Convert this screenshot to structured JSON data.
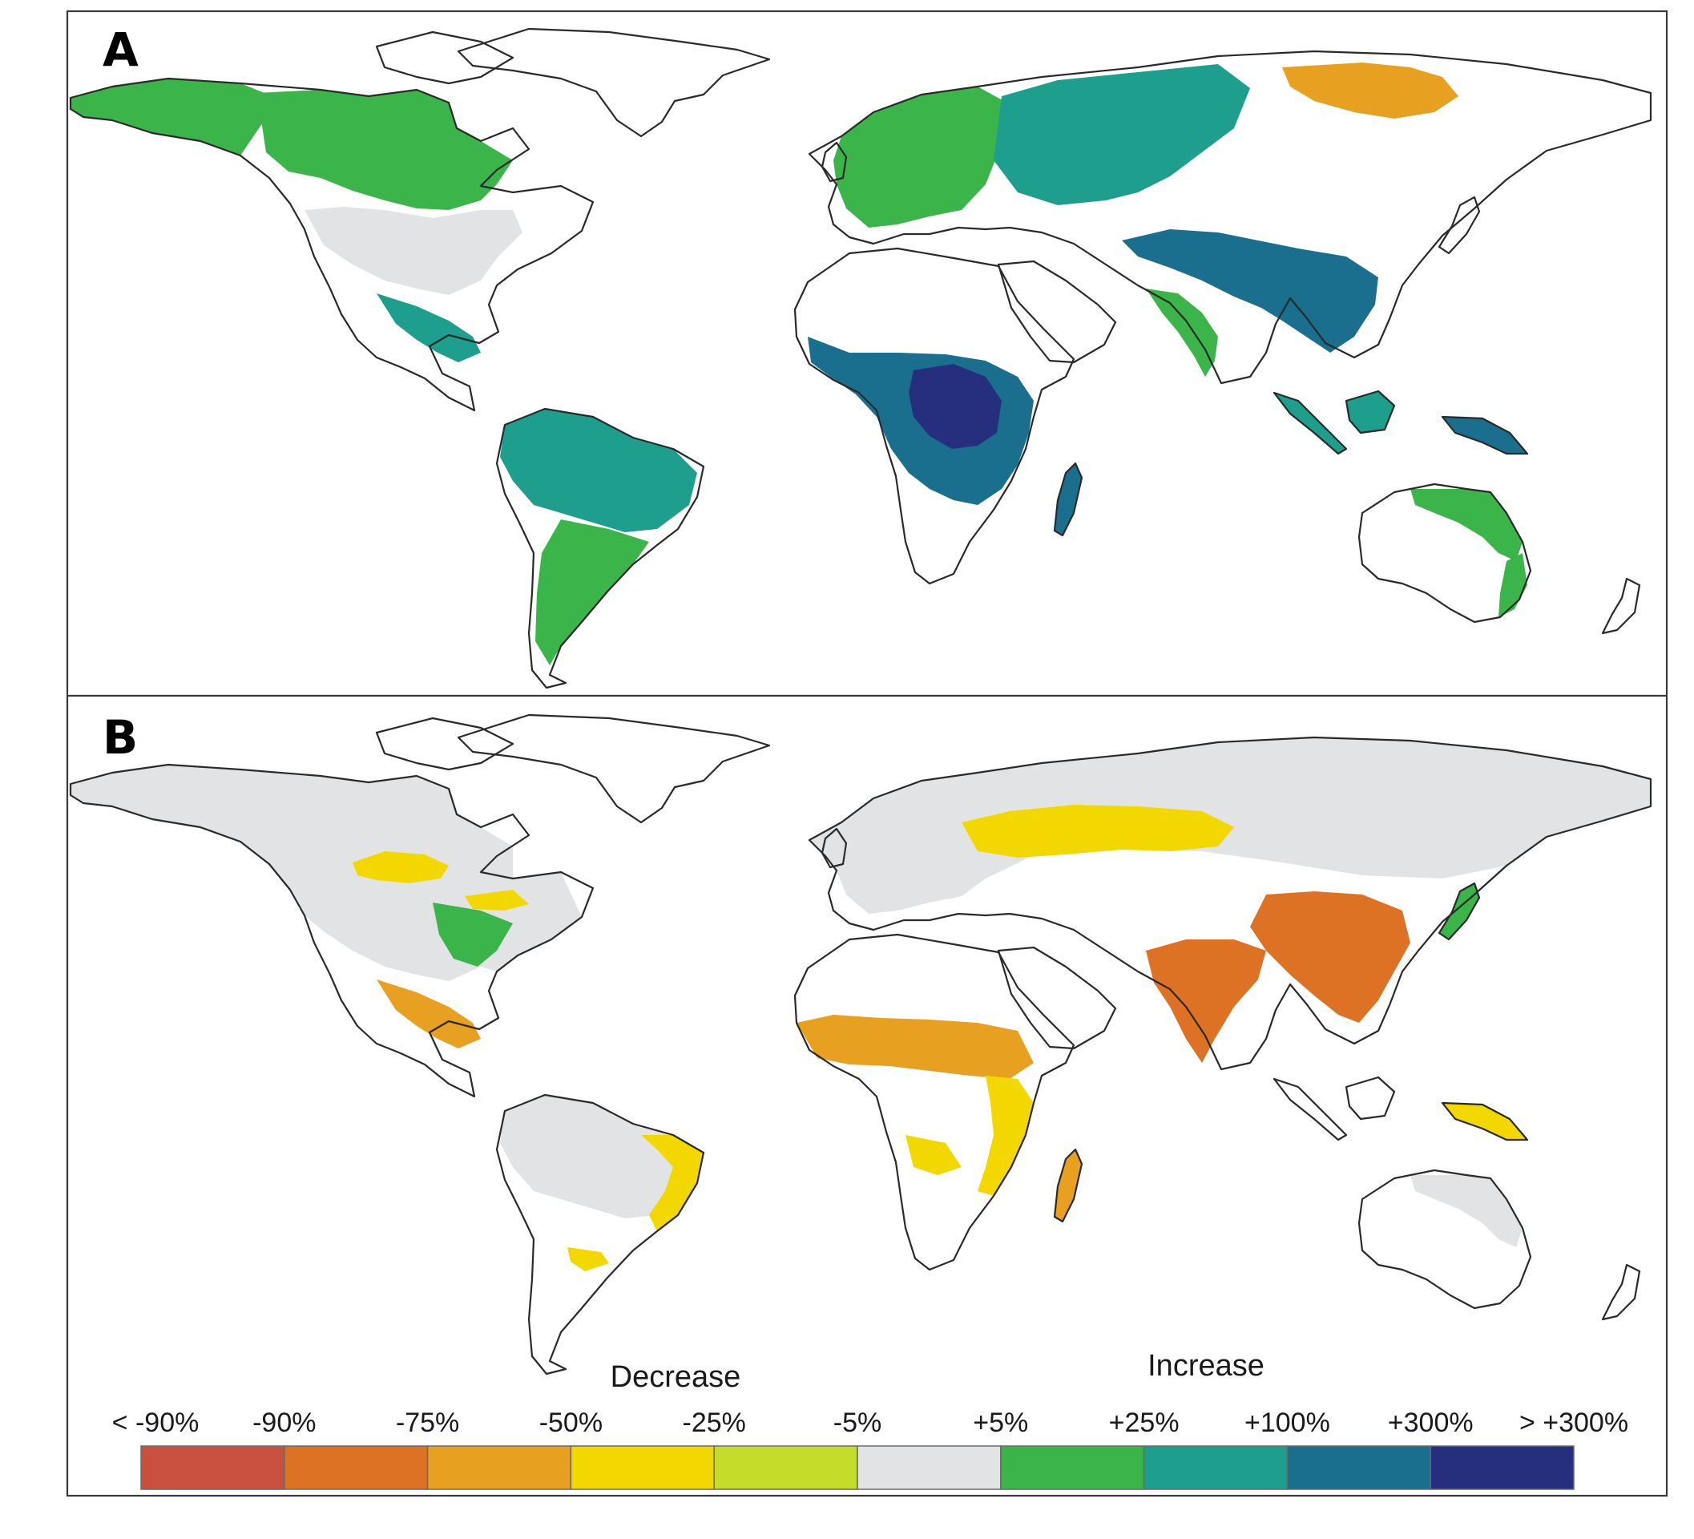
{
  "panels": [
    {
      "id": "A",
      "label": "A",
      "regions": [
        {
          "name": "north-america-west",
          "class": "+5% to +25%"
        },
        {
          "name": "north-america-boreal",
          "class": "+5% to +25%"
        },
        {
          "name": "north-america-interior",
          "class": "-5% to +5%"
        },
        {
          "name": "central-america",
          "class": "+25% to +100%"
        },
        {
          "name": "amazon",
          "class": "+25% to +100%"
        },
        {
          "name": "southern-south-america",
          "class": "+5% to +25%"
        },
        {
          "name": "europe",
          "class": "+5% to +25%"
        },
        {
          "name": "siberia",
          "class": "+25% to +100%"
        },
        {
          "name": "east-siberia-hotspot",
          "class": "-75% to -50%"
        },
        {
          "name": "central-africa",
          "class": "+100% to +300%"
        },
        {
          "name": "congo-core",
          "class": "> +300%"
        },
        {
          "name": "madagascar",
          "class": "+100% to +300%"
        },
        {
          "name": "tibet-south-asia",
          "class": "+100% to +300%"
        },
        {
          "name": "india",
          "class": "+5% to +25%"
        },
        {
          "name": "southeast-asia",
          "class": "+25% to +100%"
        },
        {
          "name": "new-guinea",
          "class": "+100% to +300%"
        },
        {
          "name": "australia-east",
          "class": "+5% to +25%"
        }
      ]
    },
    {
      "id": "B",
      "label": "B",
      "regions": [
        {
          "name": "north-america",
          "class": "-5% to +5%"
        },
        {
          "name": "canada-prairies",
          "class": "-50% to -25%"
        },
        {
          "name": "us-east",
          "class": "+5% to +25%"
        },
        {
          "name": "central-america",
          "class": "-75% to -50%"
        },
        {
          "name": "amazon",
          "class": "-5% to +5%"
        },
        {
          "name": "brazil-east",
          "class": "-50% to -25%"
        },
        {
          "name": "europe",
          "class": "-5% to +5%"
        },
        {
          "name": "russia-steppe",
          "class": "-50% to -25%"
        },
        {
          "name": "sahel",
          "class": "-75% to -50%"
        },
        {
          "name": "east-africa",
          "class": "-50% to -25%"
        },
        {
          "name": "madagascar",
          "class": "-75% to -50%"
        },
        {
          "name": "india",
          "class": "-90% to -75%"
        },
        {
          "name": "china",
          "class": "-90% to -75%"
        },
        {
          "name": "japan",
          "class": "+5% to +25%"
        },
        {
          "name": "new-guinea",
          "class": "-50% to -25%"
        },
        {
          "name": "australia",
          "class": "-5% to +5%"
        }
      ]
    }
  ],
  "legend": {
    "decrease_label": "Decrease",
    "increase_label": "Increase",
    "tick_labels": [
      "< -90%",
      "-90%",
      "-75%",
      "-50%",
      "-25%",
      "-5%",
      "+5%",
      "+25%",
      "+100%",
      "+300%",
      "> +300%"
    ],
    "colors": [
      "#c94f3e",
      "#de7224",
      "#e8a020",
      "#f3d800",
      "#c5dc2a",
      "#e2e3e4",
      "#3bb54a",
      "#1e9e8c",
      "#1a6e8e",
      "#262f7e"
    ],
    "classes": [
      "< -90%",
      "-90% to -75%",
      "-75% to -50%",
      "-50% to -25%",
      "-25% to -5%",
      "-5% to +5%",
      "+5% to +25%",
      "+25% to +100%",
      "+100% to +300%",
      "> +300%"
    ]
  }
}
